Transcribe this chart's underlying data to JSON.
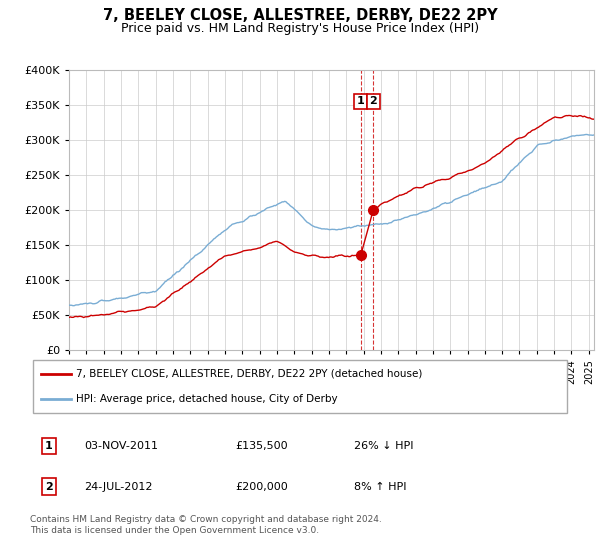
{
  "title": "7, BEELEY CLOSE, ALLESTREE, DERBY, DE22 2PY",
  "subtitle": "Price paid vs. HM Land Registry's House Price Index (HPI)",
  "ylim": [
    0,
    400000
  ],
  "xlim_start": 1995.0,
  "xlim_end": 2025.3,
  "sale1_date": 2011.84,
  "sale1_price": 135500,
  "sale2_date": 2012.56,
  "sale2_price": 200000,
  "legend_entries": [
    "7, BEELEY CLOSE, ALLESTREE, DERBY, DE22 2PY (detached house)",
    "HPI: Average price, detached house, City of Derby"
  ],
  "table_rows": [
    {
      "num": "1",
      "date": "03-NOV-2011",
      "price": "£135,500",
      "hpi": "26% ↓ HPI"
    },
    {
      "num": "2",
      "date": "24-JUL-2012",
      "price": "£200,000",
      "hpi": "8% ↑ HPI"
    }
  ],
  "footnote": "Contains HM Land Registry data © Crown copyright and database right 2024.\nThis data is licensed under the Open Government Licence v3.0.",
  "line_color_red": "#cc0000",
  "line_color_blue": "#7aadd4",
  "grid_color": "#cccccc",
  "background_color": "#ffffff",
  "title_fontsize": 10.5,
  "subtitle_fontsize": 9
}
